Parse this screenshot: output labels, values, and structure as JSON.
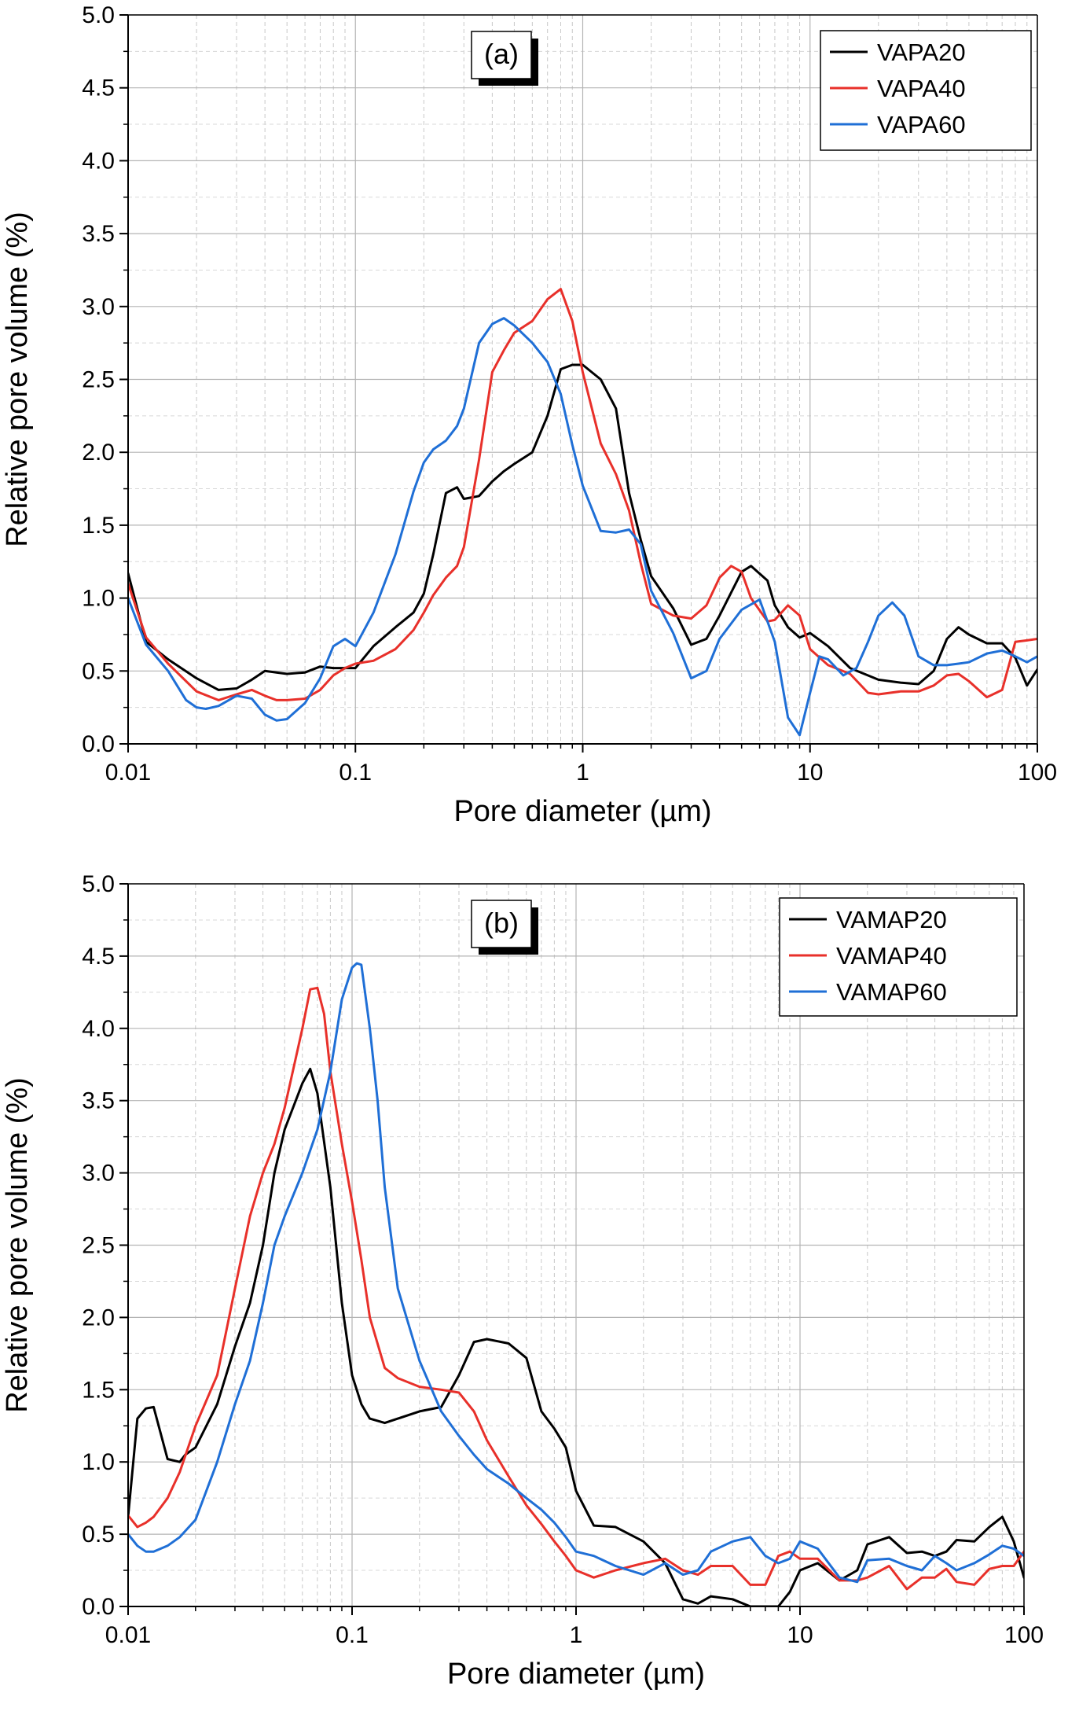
{
  "chart_data": [
    {
      "type": "line",
      "panel_label": "(a)",
      "xlabel": "Pore diameter (µm)",
      "ylabel": "Relative pore volume (%)",
      "xscale": "log",
      "xlim": [
        0.01,
        100
      ],
      "ylim": [
        0,
        5
      ],
      "xticks": [
        0.01,
        0.1,
        1,
        10,
        100
      ],
      "xtick_labels": [
        "0.01",
        "0.1",
        "1",
        "10",
        "100"
      ],
      "yticks": [
        0,
        0.5,
        1,
        1.5,
        2,
        2.5,
        3,
        3.5,
        4,
        4.5,
        5
      ],
      "ytick_labels": [
        "0.0",
        "0.5",
        "1.0",
        "1.5",
        "2.0",
        "2.5",
        "3.0",
        "3.5",
        "4.0",
        "4.5",
        "5.0"
      ],
      "grid": true,
      "legend_position": "top-right",
      "series": [
        {
          "name": "VAPA20",
          "color": "#000000",
          "x": [
            0.01,
            0.012,
            0.015,
            0.02,
            0.025,
            0.03,
            0.035,
            0.04,
            0.045,
            0.05,
            0.06,
            0.07,
            0.08,
            0.09,
            0.1,
            0.12,
            0.15,
            0.18,
            0.2,
            0.22,
            0.25,
            0.28,
            0.3,
            0.35,
            0.4,
            0.45,
            0.5,
            0.6,
            0.7,
            0.8,
            0.9,
            1.0,
            1.2,
            1.4,
            1.6,
            1.8,
            2.0,
            2.5,
            3.0,
            3.5,
            4.0,
            5.0,
            5.5,
            6.5,
            7.0,
            8.0,
            9.0,
            10.0,
            12.0,
            15.0,
            20.0,
            25.0,
            30.0,
            35.0,
            40.0,
            45.0,
            50.0,
            60.0,
            70.0,
            80.0,
            90.0,
            100.0
          ],
          "y": [
            1.17,
            0.7,
            0.58,
            0.45,
            0.37,
            0.38,
            0.44,
            0.5,
            0.49,
            0.48,
            0.49,
            0.53,
            0.52,
            0.52,
            0.52,
            0.67,
            0.8,
            0.9,
            1.03,
            1.3,
            1.72,
            1.76,
            1.68,
            1.7,
            1.8,
            1.87,
            1.92,
            2.0,
            2.25,
            2.57,
            2.6,
            2.6,
            2.5,
            2.3,
            1.72,
            1.4,
            1.15,
            0.93,
            0.68,
            0.72,
            0.88,
            1.18,
            1.22,
            1.12,
            0.95,
            0.8,
            0.73,
            0.76,
            0.67,
            0.52,
            0.44,
            0.42,
            0.41,
            0.5,
            0.72,
            0.8,
            0.75,
            0.69,
            0.69,
            0.59,
            0.4,
            0.51
          ]
        },
        {
          "name": "VAPA40",
          "color": "#e8302a",
          "x": [
            0.01,
            0.012,
            0.015,
            0.02,
            0.025,
            0.03,
            0.035,
            0.04,
            0.045,
            0.05,
            0.06,
            0.07,
            0.08,
            0.09,
            0.1,
            0.12,
            0.15,
            0.18,
            0.2,
            0.22,
            0.25,
            0.28,
            0.3,
            0.35,
            0.4,
            0.45,
            0.5,
            0.6,
            0.7,
            0.8,
            0.9,
            1.0,
            1.2,
            1.4,
            1.6,
            1.8,
            2.0,
            2.5,
            3.0,
            3.5,
            4.0,
            4.5,
            5.0,
            5.5,
            6.5,
            7.0,
            8.0,
            9.0,
            10.0,
            12.0,
            15.0,
            18.0,
            20.0,
            25.0,
            30.0,
            35.0,
            40.0,
            45.0,
            50.0,
            60.0,
            70.0,
            80.0,
            90.0,
            100.0
          ],
          "y": [
            1.1,
            0.73,
            0.55,
            0.36,
            0.3,
            0.34,
            0.37,
            0.33,
            0.3,
            0.3,
            0.31,
            0.37,
            0.47,
            0.52,
            0.55,
            0.57,
            0.65,
            0.78,
            0.9,
            1.02,
            1.14,
            1.22,
            1.35,
            1.95,
            2.55,
            2.7,
            2.82,
            2.9,
            3.05,
            3.12,
            2.9,
            2.55,
            2.06,
            1.85,
            1.6,
            1.24,
            0.96,
            0.88,
            0.86,
            0.95,
            1.14,
            1.22,
            1.18,
            1.0,
            0.84,
            0.85,
            0.95,
            0.88,
            0.65,
            0.54,
            0.48,
            0.35,
            0.34,
            0.36,
            0.36,
            0.4,
            0.47,
            0.48,
            0.43,
            0.32,
            0.37,
            0.7,
            0.71,
            0.72
          ]
        },
        {
          "name": "VAPA60",
          "color": "#1f6fd6",
          "x": [
            0.01,
            0.012,
            0.015,
            0.018,
            0.02,
            0.022,
            0.025,
            0.03,
            0.035,
            0.04,
            0.045,
            0.05,
            0.06,
            0.07,
            0.08,
            0.09,
            0.1,
            0.12,
            0.15,
            0.18,
            0.2,
            0.22,
            0.25,
            0.28,
            0.3,
            0.35,
            0.4,
            0.45,
            0.5,
            0.6,
            0.7,
            0.8,
            0.9,
            1.0,
            1.2,
            1.4,
            1.6,
            1.8,
            2.0,
            2.5,
            3.0,
            3.5,
            4.0,
            5.0,
            6.0,
            7.0,
            8.0,
            9.0,
            10.0,
            11.0,
            12.0,
            14.0,
            16.0,
            18.0,
            20.0,
            23.0,
            26.0,
            30.0,
            35.0,
            40.0,
            45.0,
            50.0,
            60.0,
            70.0,
            80.0,
            90.0,
            100.0
          ],
          "y": [
            1.0,
            0.68,
            0.5,
            0.3,
            0.25,
            0.24,
            0.26,
            0.33,
            0.31,
            0.2,
            0.16,
            0.17,
            0.28,
            0.45,
            0.67,
            0.72,
            0.67,
            0.9,
            1.3,
            1.73,
            1.93,
            2.02,
            2.08,
            2.18,
            2.3,
            2.75,
            2.88,
            2.92,
            2.87,
            2.75,
            2.62,
            2.4,
            2.05,
            1.77,
            1.46,
            1.45,
            1.47,
            1.37,
            1.05,
            0.76,
            0.45,
            0.5,
            0.72,
            0.92,
            0.99,
            0.7,
            0.18,
            0.06,
            0.35,
            0.6,
            0.58,
            0.47,
            0.52,
            0.7,
            0.88,
            0.97,
            0.88,
            0.6,
            0.54,
            0.54,
            0.55,
            0.56,
            0.62,
            0.64,
            0.6,
            0.56,
            0.6
          ]
        }
      ]
    },
    {
      "type": "line",
      "panel_label": "(b)",
      "xlabel": "Pore diameter (µm)",
      "ylabel": "Relative pore volume (%)",
      "xscale": "log",
      "xlim": [
        0.01,
        100
      ],
      "ylim": [
        0,
        5
      ],
      "xticks": [
        0.01,
        0.1,
        1,
        10,
        100
      ],
      "xtick_labels": [
        "0.01",
        "0.1",
        "1",
        "10",
        "100"
      ],
      "yticks": [
        0,
        0.5,
        1,
        1.5,
        2,
        2.5,
        3,
        3.5,
        4,
        4.5,
        5
      ],
      "ytick_labels": [
        "0.0",
        "0.5",
        "1.0",
        "1.5",
        "2.0",
        "2.5",
        "3.0",
        "3.5",
        "4.0",
        "4.5",
        "5.0"
      ],
      "grid": true,
      "legend_position": "top-right",
      "series": [
        {
          "name": "VAMAP20",
          "color": "#000000",
          "x": [
            0.01,
            0.011,
            0.012,
            0.013,
            0.015,
            0.017,
            0.018,
            0.02,
            0.025,
            0.03,
            0.035,
            0.04,
            0.045,
            0.05,
            0.06,
            0.065,
            0.07,
            0.08,
            0.09,
            0.1,
            0.11,
            0.12,
            0.14,
            0.16,
            0.2,
            0.25,
            0.3,
            0.35,
            0.4,
            0.5,
            0.6,
            0.7,
            0.8,
            0.9,
            1.0,
            1.2,
            1.5,
            2.0,
            2.5,
            3.0,
            3.5,
            4.0,
            5.0,
            6.0,
            7.0,
            8.0,
            9.0,
            10.0,
            12.0,
            15.0,
            18.0,
            20.0,
            25.0,
            30.0,
            35.0,
            40.0,
            45.0,
            50.0,
            60.0,
            70.0,
            80.0,
            90.0,
            100.0
          ],
          "y": [
            0.62,
            1.3,
            1.37,
            1.38,
            1.02,
            1.0,
            1.05,
            1.1,
            1.4,
            1.8,
            2.1,
            2.5,
            3.0,
            3.3,
            3.62,
            3.72,
            3.55,
            2.9,
            2.1,
            1.6,
            1.4,
            1.3,
            1.27,
            1.3,
            1.35,
            1.38,
            1.6,
            1.83,
            1.85,
            1.82,
            1.72,
            1.35,
            1.23,
            1.1,
            0.8,
            0.56,
            0.55,
            0.45,
            0.3,
            0.05,
            0.02,
            0.07,
            0.05,
            0.0,
            0.0,
            0.0,
            0.1,
            0.25,
            0.3,
            0.18,
            0.25,
            0.43,
            0.48,
            0.37,
            0.38,
            0.35,
            0.38,
            0.46,
            0.45,
            0.55,
            0.62,
            0.45,
            0.2
          ]
        },
        {
          "name": "VAMAP40",
          "color": "#e8302a",
          "x": [
            0.01,
            0.011,
            0.012,
            0.013,
            0.015,
            0.017,
            0.02,
            0.025,
            0.03,
            0.035,
            0.04,
            0.045,
            0.05,
            0.06,
            0.065,
            0.07,
            0.075,
            0.08,
            0.09,
            0.1,
            0.11,
            0.12,
            0.14,
            0.16,
            0.2,
            0.25,
            0.3,
            0.35,
            0.4,
            0.5,
            0.6,
            0.7,
            0.8,
            0.9,
            1.0,
            1.2,
            1.5,
            2.0,
            2.5,
            3.0,
            3.5,
            4.0,
            5.0,
            6.0,
            7.0,
            8.0,
            9.0,
            10.0,
            12.0,
            15.0,
            18.0,
            20.0,
            25.0,
            30.0,
            35.0,
            40.0,
            45.0,
            50.0,
            60.0,
            70.0,
            80.0,
            90.0,
            100.0
          ],
          "y": [
            0.63,
            0.55,
            0.58,
            0.62,
            0.75,
            0.93,
            1.25,
            1.6,
            2.2,
            2.7,
            3.0,
            3.2,
            3.45,
            4.0,
            4.27,
            4.28,
            4.1,
            3.7,
            3.2,
            2.8,
            2.4,
            2.0,
            1.65,
            1.58,
            1.52,
            1.5,
            1.48,
            1.35,
            1.15,
            0.9,
            0.7,
            0.57,
            0.45,
            0.35,
            0.25,
            0.2,
            0.25,
            0.3,
            0.33,
            0.25,
            0.22,
            0.28,
            0.28,
            0.15,
            0.15,
            0.35,
            0.38,
            0.33,
            0.33,
            0.18,
            0.18,
            0.2,
            0.28,
            0.12,
            0.2,
            0.2,
            0.26,
            0.17,
            0.15,
            0.26,
            0.28,
            0.28,
            0.38
          ]
        },
        {
          "name": "VAMAP60",
          "color": "#1f6fd6",
          "x": [
            0.01,
            0.011,
            0.012,
            0.013,
            0.015,
            0.017,
            0.02,
            0.025,
            0.03,
            0.035,
            0.04,
            0.045,
            0.05,
            0.06,
            0.07,
            0.08,
            0.09,
            0.1,
            0.105,
            0.11,
            0.12,
            0.13,
            0.14,
            0.16,
            0.2,
            0.25,
            0.3,
            0.35,
            0.4,
            0.5,
            0.6,
            0.7,
            0.8,
            0.9,
            1.0,
            1.2,
            1.5,
            2.0,
            2.5,
            3.0,
            3.5,
            4.0,
            5.0,
            6.0,
            7.0,
            8.0,
            9.0,
            10.0,
            12.0,
            15.0,
            18.0,
            20.0,
            25.0,
            30.0,
            35.0,
            40.0,
            45.0,
            50.0,
            60.0,
            70.0,
            80.0,
            90.0,
            100.0
          ],
          "y": [
            0.5,
            0.42,
            0.38,
            0.38,
            0.42,
            0.48,
            0.6,
            1.0,
            1.4,
            1.7,
            2.1,
            2.5,
            2.7,
            3.0,
            3.3,
            3.7,
            4.2,
            4.42,
            4.45,
            4.44,
            4.0,
            3.5,
            2.9,
            2.2,
            1.7,
            1.35,
            1.18,
            1.05,
            0.95,
            0.85,
            0.75,
            0.67,
            0.58,
            0.48,
            0.38,
            0.35,
            0.28,
            0.22,
            0.3,
            0.22,
            0.25,
            0.38,
            0.45,
            0.48,
            0.35,
            0.3,
            0.33,
            0.45,
            0.4,
            0.2,
            0.17,
            0.32,
            0.33,
            0.28,
            0.25,
            0.35,
            0.3,
            0.25,
            0.3,
            0.36,
            0.42,
            0.4,
            0.35
          ]
        }
      ]
    }
  ]
}
